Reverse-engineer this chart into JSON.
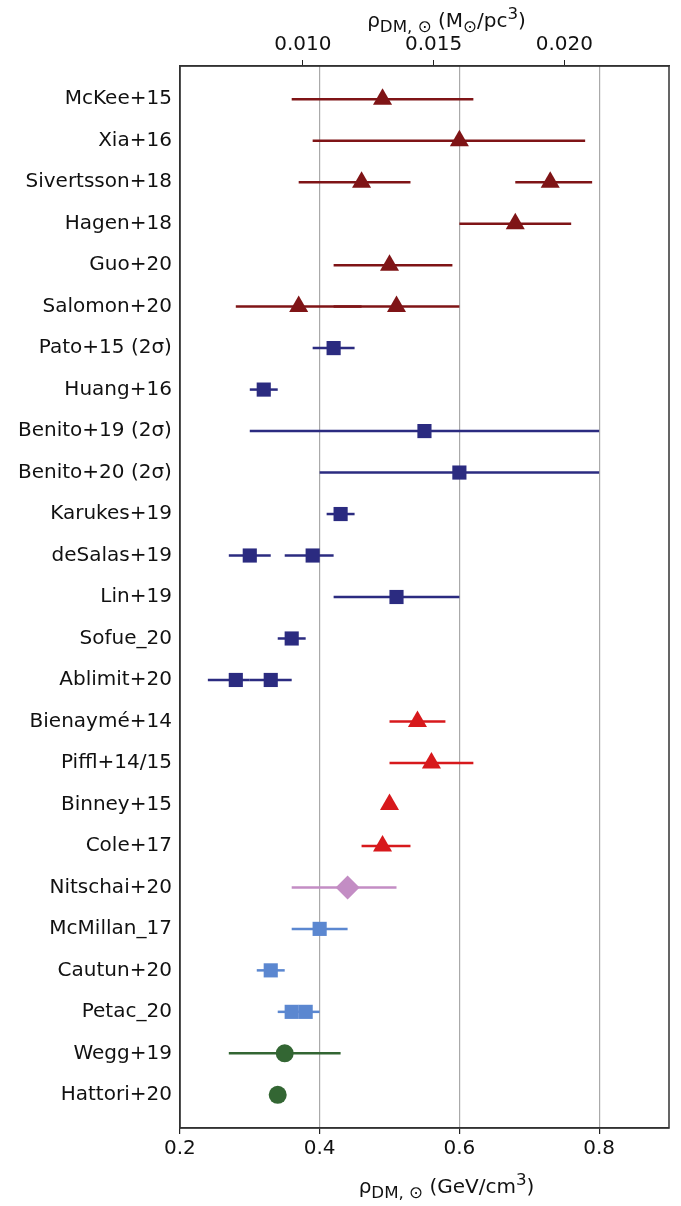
{
  "chart_data": {
    "type": "scatter",
    "orientation": "horizontal",
    "xlabel": "ρ$_{DM, ⊙}$ (GeV/cm$^{3}$)",
    "x2label": "ρ$_{DM, ⊙}$ (M$_{⊙}$/pc$^{3}$)",
    "categories": [
      "McKee+15",
      "Xia+16",
      "Sivertsson+18",
      "Hagen+18",
      "Guo+20",
      "Salomon+20",
      "Pato+15 (2σ)",
      "Huang+16",
      "Benito+19 (2σ)",
      "Benito+20 (2σ)",
      "Karukes+19",
      "deSalas+19",
      "Lin+19",
      "Sofue_20",
      "Ablimit+20",
      "Bienaymé+14",
      "Piffl+14/15",
      "Binney+15",
      "Cole+17",
      "Nitschai+20",
      "McMillan_17",
      "Cautun+20",
      "Petac_20",
      "Wegg+19",
      "Hattori+20"
    ],
    "xlim": [
      0.2,
      0.9
    ],
    "xticks": [
      {
        "value": 0.2,
        "label": "0.2"
      },
      {
        "value": 0.4,
        "label": "0.4"
      },
      {
        "value": 0.6,
        "label": "0.6"
      },
      {
        "value": 0.8,
        "label": "0.8"
      }
    ],
    "x2lim": [
      0.0053,
      0.024
    ],
    "x2ticks": [
      {
        "value": 0.01,
        "label": "0.010"
      },
      {
        "value": 0.015,
        "label": "0.015"
      },
      {
        "value": 0.02,
        "label": "0.020"
      }
    ],
    "grid": "x",
    "legend": false,
    "series": [
      {
        "color": "#7f1416",
        "marker": "triangle",
        "values": [
          0.49,
          0.6,
          0.46,
          0.68,
          0.5,
          0.37,
          null,
          null,
          null,
          null,
          null,
          null,
          null,
          null,
          null,
          null,
          null,
          null,
          null,
          null,
          null,
          null,
          null,
          null,
          null
        ],
        "errors": [
          [
            0.36,
            0.62
          ],
          [
            0.39,
            0.78
          ],
          [
            0.37,
            0.53
          ],
          [
            0.6,
            0.76
          ],
          [
            0.42,
            0.59
          ],
          [
            0.28,
            0.46
          ],
          null,
          null,
          null,
          null,
          null,
          null,
          null,
          null,
          null,
          null,
          null,
          null,
          null,
          null,
          null,
          null,
          null,
          null,
          null
        ]
      },
      {
        "color": "#7f1416",
        "marker": "triangle",
        "values": [
          null,
          null,
          0.73,
          null,
          null,
          0.51,
          null,
          null,
          null,
          null,
          null,
          null,
          null,
          null,
          null,
          null,
          null,
          null,
          null,
          null,
          null,
          null,
          null,
          null,
          null
        ],
        "errors": [
          null,
          null,
          [
            0.68,
            0.79
          ],
          null,
          null,
          [
            0.42,
            0.6
          ],
          null,
          null,
          null,
          null,
          null,
          null,
          null,
          null,
          null,
          null,
          null,
          null,
          null,
          null,
          null,
          null,
          null,
          null,
          null
        ]
      },
      {
        "color": "#2b2b80",
        "marker": "square",
        "values": [
          null,
          null,
          null,
          null,
          null,
          null,
          0.42,
          0.32,
          0.55,
          0.6,
          0.43,
          0.3,
          0.51,
          0.36,
          0.28,
          null,
          null,
          null,
          null,
          null,
          null,
          null,
          null,
          null,
          null
        ],
        "errors": [
          null,
          null,
          null,
          null,
          null,
          null,
          [
            0.39,
            0.45
          ],
          [
            0.3,
            0.34
          ],
          [
            0.3,
            0.8
          ],
          [
            0.4,
            0.8
          ],
          [
            0.41,
            0.45
          ],
          [
            0.27,
            0.33
          ],
          [
            0.42,
            0.6
          ],
          [
            0.34,
            0.38
          ],
          [
            0.24,
            0.3
          ],
          null,
          null,
          null,
          null,
          null,
          null,
          null,
          null,
          null,
          null
        ]
      },
      {
        "color": "#2b2b80",
        "marker": "square",
        "values": [
          null,
          null,
          null,
          null,
          null,
          null,
          null,
          null,
          null,
          null,
          null,
          0.39,
          null,
          null,
          0.33,
          null,
          null,
          null,
          null,
          null,
          null,
          null,
          null,
          null,
          null
        ],
        "errors": [
          null,
          null,
          null,
          null,
          null,
          null,
          null,
          null,
          null,
          null,
          null,
          [
            0.35,
            0.42
          ],
          null,
          null,
          [
            0.3,
            0.36
          ],
          null,
          null,
          null,
          null,
          null,
          null,
          null,
          null,
          null,
          null
        ]
      },
      {
        "color": "#d7191c",
        "marker": "triangle",
        "values": [
          null,
          null,
          null,
          null,
          null,
          null,
          null,
          null,
          null,
          null,
          null,
          null,
          null,
          null,
          null,
          0.54,
          0.56,
          0.5,
          0.49,
          null,
          null,
          null,
          null,
          null,
          null
        ],
        "errors": [
          null,
          null,
          null,
          null,
          null,
          null,
          null,
          null,
          null,
          null,
          null,
          null,
          null,
          null,
          null,
          [
            0.5,
            0.58
          ],
          [
            0.5,
            0.62
          ],
          null,
          [
            0.46,
            0.53
          ],
          null,
          null,
          null,
          null,
          null,
          null
        ]
      },
      {
        "color": "#c38dc4",
        "marker": "diamond",
        "values": [
          null,
          null,
          null,
          null,
          null,
          null,
          null,
          null,
          null,
          null,
          null,
          null,
          null,
          null,
          null,
          null,
          null,
          null,
          null,
          0.44,
          null,
          null,
          null,
          null,
          null
        ],
        "errors": [
          null,
          null,
          null,
          null,
          null,
          null,
          null,
          null,
          null,
          null,
          null,
          null,
          null,
          null,
          null,
          null,
          null,
          null,
          null,
          [
            0.36,
            0.51
          ],
          null,
          null,
          null,
          null,
          null
        ]
      },
      {
        "color": "#5b87d0",
        "marker": "square",
        "values": [
          null,
          null,
          null,
          null,
          null,
          null,
          null,
          null,
          null,
          null,
          null,
          null,
          null,
          null,
          null,
          null,
          null,
          null,
          null,
          null,
          0.4,
          0.33,
          0.36,
          null,
          null
        ],
        "errors": [
          null,
          null,
          null,
          null,
          null,
          null,
          null,
          null,
          null,
          null,
          null,
          null,
          null,
          null,
          null,
          null,
          null,
          null,
          null,
          null,
          [
            0.36,
            0.44
          ],
          [
            0.31,
            0.35
          ],
          [
            0.34,
            0.37
          ],
          null,
          null
        ]
      },
      {
        "color": "#5b87d0",
        "marker": "square",
        "values": [
          null,
          null,
          null,
          null,
          null,
          null,
          null,
          null,
          null,
          null,
          null,
          null,
          null,
          null,
          null,
          null,
          null,
          null,
          null,
          null,
          null,
          null,
          0.38,
          null,
          null
        ],
        "errors": [
          null,
          null,
          null,
          null,
          null,
          null,
          null,
          null,
          null,
          null,
          null,
          null,
          null,
          null,
          null,
          null,
          null,
          null,
          null,
          null,
          null,
          null,
          [
            0.37,
            0.4
          ],
          null,
          null
        ]
      },
      {
        "color": "#336633",
        "marker": "circle",
        "values": [
          null,
          null,
          null,
          null,
          null,
          null,
          null,
          null,
          null,
          null,
          null,
          null,
          null,
          null,
          null,
          null,
          null,
          null,
          null,
          null,
          null,
          null,
          null,
          0.35,
          0.34
        ],
        "errors": [
          null,
          null,
          null,
          null,
          null,
          null,
          null,
          null,
          null,
          null,
          null,
          null,
          null,
          null,
          null,
          null,
          null,
          null,
          null,
          null,
          null,
          null,
          null,
          [
            0.27,
            0.43
          ],
          null
        ]
      }
    ]
  }
}
